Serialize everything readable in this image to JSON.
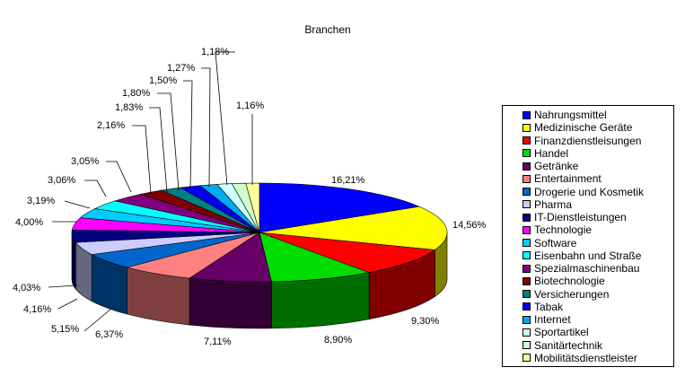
{
  "chart_data": {
    "type": "pie",
    "title": "Branchen",
    "legend_position": "right",
    "three_d": true,
    "slices": [
      {
        "label": "Nahrungsmittel",
        "value": 16.21,
        "value_label": "16,21%",
        "color": "#0000FF"
      },
      {
        "label": "Medizinische Geräte",
        "value": 14.56,
        "value_label": "14,56%",
        "color": "#FFFF00"
      },
      {
        "label": "Finanzdienstleisungen",
        "value": 9.3,
        "value_label": "9,30%",
        "color": "#FF0000"
      },
      {
        "label": "Handel",
        "value": 8.9,
        "value_label": "8,90%",
        "color": "#00DD00"
      },
      {
        "label": "Getränke",
        "value": 7.11,
        "value_label": "7,11%",
        "color": "#660066"
      },
      {
        "label": "Entertainment",
        "value": 6.37,
        "value_label": "6,37%",
        "color": "#FF8080"
      },
      {
        "label": "Drogerie und Kosmetik",
        "value": 5.15,
        "value_label": "5,15%",
        "color": "#0066CC"
      },
      {
        "label": "Pharma",
        "value": 4.16,
        "value_label": "4,16%",
        "color": "#CCCCFF"
      },
      {
        "label": "IT-Dienstleistungen",
        "value": 4.03,
        "value_label": "4,03%",
        "color": "#000080"
      },
      {
        "label": "Technologie",
        "value": 4.0,
        "value_label": "4,00%",
        "color": "#FF00FF"
      },
      {
        "label": "Software",
        "value": 3.19,
        "value_label": "3,19%",
        "color": "#00CCFF"
      },
      {
        "label": "Eisenbahn und Straße",
        "value": 3.06,
        "value_label": "3,06%",
        "color": "#00FFFF"
      },
      {
        "label": "Spezialmaschinenbau",
        "value": 3.05,
        "value_label": "3,05%",
        "color": "#800080"
      },
      {
        "label": "Biotechnologie",
        "value": 2.16,
        "value_label": "2,16%",
        "color": "#800000"
      },
      {
        "label": "Versicherungen",
        "value": 1.83,
        "value_label": "1,83%",
        "color": "#008080"
      },
      {
        "label": "Tabak",
        "value": 1.8,
        "value_label": "1,80%",
        "color": "#0000EE"
      },
      {
        "label": "Internet",
        "value": 1.5,
        "value_label": "1,50%",
        "color": "#00AAEE"
      },
      {
        "label": "Sportartikel",
        "value": 1.27,
        "value_label": "1,27%",
        "color": "#CCFFFF"
      },
      {
        "label": "Sanitärtechnik",
        "value": 1.18,
        "value_label": "1,18%",
        "color": "#CCFFCC"
      },
      {
        "label": "Mobilitätsdienstleister",
        "value": 1.16,
        "value_label": "1,16%",
        "color": "#FFFF99"
      }
    ]
  }
}
